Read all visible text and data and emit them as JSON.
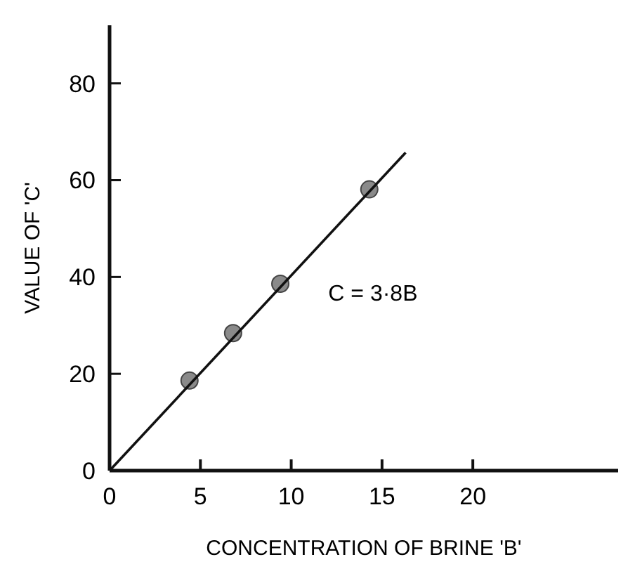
{
  "chart_data": {
    "type": "scatter",
    "xlabel": "CONCENTRATION OF BRINE 'B'",
    "ylabel": "VALUE OF 'C'",
    "xlim": [
      0,
      28
    ],
    "ylim": [
      0,
      92
    ],
    "xticks": [
      0,
      5,
      10,
      15,
      20
    ],
    "yticks": [
      0,
      20,
      40,
      60,
      80
    ],
    "grid": false,
    "marker": "circle",
    "annotations": [
      "C = 3·8B"
    ],
    "series": [
      {
        "color": "#8a8a8a",
        "x": [
          4.4,
          6.8,
          9.4,
          14.3
        ],
        "values": [
          18.6,
          28.4,
          38.6,
          58.1
        ]
      },
      {
        "type": "line",
        "color": "#111111",
        "x": [
          0,
          16.3
        ],
        "values": [
          0,
          65.7
        ],
        "line_style": "solid",
        "marker": "none"
      }
    ]
  }
}
